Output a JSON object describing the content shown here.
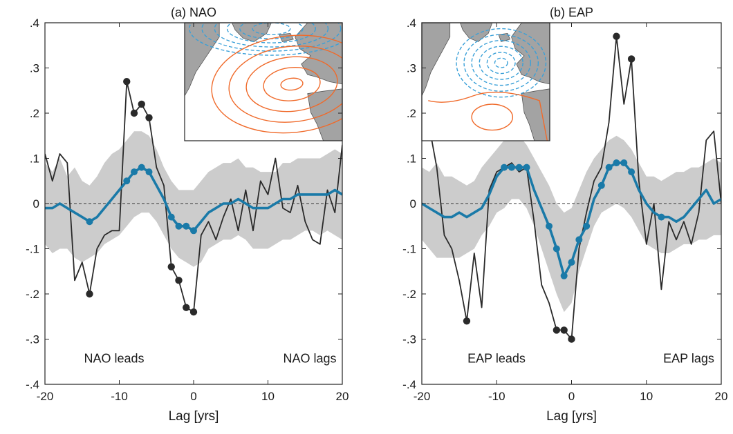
{
  "chart_data": [
    {
      "type": "line",
      "title": "(a) NAO",
      "xlabel": "Lag [yrs]",
      "ylabel": "",
      "xlim": [
        -20,
        20
      ],
      "ylim": [
        -0.4,
        0.4
      ],
      "xticks": [
        -20,
        -10,
        0,
        10,
        20
      ],
      "yticks": [
        -0.4,
        -0.3,
        -0.2,
        -0.1,
        0,
        0.1,
        0.2,
        0.3,
        0.4
      ],
      "zero_line": true,
      "annotations": [
        "NAO leads",
        "NAO lags"
      ],
      "inset_map": true,
      "series": [
        {
          "style": "black-thin",
          "x": [
            -20,
            -19,
            -18,
            -17,
            -16,
            -15,
            -14,
            -13,
            -12,
            -11,
            -10,
            -9,
            -8,
            -7,
            -6,
            -5,
            -4,
            -3,
            -2,
            -1,
            0,
            1,
            2,
            3,
            4,
            5,
            6,
            7,
            8,
            9,
            10,
            11,
            12,
            13,
            14,
            15,
            16,
            17,
            18,
            19,
            20
          ],
          "y": [
            0.11,
            0.05,
            0.11,
            0.09,
            -0.17,
            -0.13,
            -0.2,
            -0.1,
            -0.07,
            -0.06,
            -0.06,
            0.27,
            0.2,
            0.22,
            0.19,
            0.08,
            0.04,
            -0.14,
            -0.17,
            -0.23,
            -0.24,
            -0.07,
            -0.04,
            -0.08,
            -0.03,
            0.01,
            -0.06,
            0.03,
            -0.06,
            0.05,
            0.02,
            0.1,
            -0.01,
            -0.02,
            0.04,
            -0.04,
            -0.08,
            -0.09,
            0.03,
            -0.02,
            0.13
          ],
          "markers_x": [
            -14,
            -9,
            -8,
            -7,
            -6,
            -3,
            -2,
            -1,
            0
          ],
          "markers_y": [
            -0.2,
            0.27,
            0.2,
            0.22,
            0.19,
            -0.14,
            -0.17,
            -0.23,
            -0.24
          ]
        },
        {
          "style": "blue-thick",
          "x": [
            -20,
            -19,
            -18,
            -17,
            -16,
            -15,
            -14,
            -13,
            -12,
            -11,
            -10,
            -9,
            -8,
            -7,
            -6,
            -5,
            -4,
            -3,
            -2,
            -1,
            0,
            1,
            2,
            3,
            4,
            5,
            6,
            7,
            8,
            9,
            10,
            11,
            12,
            13,
            14,
            15,
            16,
            17,
            18,
            19,
            20
          ],
          "y": [
            -0.01,
            -0.01,
            0.0,
            -0.01,
            -0.02,
            -0.03,
            -0.04,
            -0.03,
            -0.01,
            0.01,
            0.03,
            0.05,
            0.07,
            0.08,
            0.07,
            0.04,
            0.01,
            -0.03,
            -0.05,
            -0.05,
            -0.06,
            -0.04,
            -0.02,
            -0.01,
            0.0,
            0.0,
            0.01,
            0.0,
            -0.01,
            -0.01,
            -0.01,
            0.0,
            0.01,
            0.01,
            0.02,
            0.02,
            0.02,
            0.02,
            0.02,
            0.03,
            0.02
          ],
          "markers_x": [
            -14,
            -9,
            -8,
            -7,
            -6,
            -3,
            -2,
            -1,
            0
          ],
          "markers_y": [
            -0.04,
            0.05,
            0.07,
            0.08,
            0.07,
            -0.03,
            -0.05,
            -0.05,
            -0.06
          ]
        }
      ],
      "band": {
        "x": [
          -20,
          -19,
          -18,
          -17,
          -16,
          -15,
          -14,
          -13,
          -12,
          -11,
          -10,
          -9,
          -8,
          -7,
          -6,
          -5,
          -4,
          -3,
          -2,
          -1,
          0,
          1,
          2,
          3,
          4,
          5,
          6,
          7,
          8,
          9,
          10,
          11,
          12,
          13,
          14,
          15,
          16,
          17,
          18,
          19,
          20
        ],
        "upper": [
          0.09,
          0.07,
          0.1,
          0.06,
          0.08,
          0.05,
          0.04,
          0.06,
          0.09,
          0.11,
          0.12,
          0.14,
          0.16,
          0.16,
          0.15,
          0.12,
          0.08,
          0.05,
          0.03,
          0.03,
          0.03,
          0.05,
          0.07,
          0.08,
          0.09,
          0.09,
          0.1,
          0.08,
          0.08,
          0.07,
          0.07,
          0.07,
          0.09,
          0.09,
          0.1,
          0.1,
          0.1,
          0.1,
          0.11,
          0.12,
          0.11
        ],
        "lower": [
          -0.09,
          -0.11,
          -0.1,
          -0.1,
          -0.12,
          -0.13,
          -0.12,
          -0.11,
          -0.09,
          -0.08,
          -0.07,
          -0.05,
          -0.03,
          -0.02,
          -0.02,
          -0.04,
          -0.07,
          -0.1,
          -0.12,
          -0.13,
          -0.14,
          -0.13,
          -0.1,
          -0.09,
          -0.08,
          -0.08,
          -0.07,
          -0.08,
          -0.1,
          -0.1,
          -0.1,
          -0.09,
          -0.08,
          -0.08,
          -0.07,
          -0.06,
          -0.06,
          -0.07,
          -0.06,
          -0.07,
          -0.08
        ]
      }
    },
    {
      "type": "line",
      "title": "(b) EAP",
      "xlabel": "Lag [yrs]",
      "ylabel": "",
      "xlim": [
        -20,
        20
      ],
      "ylim": [
        -0.4,
        0.4
      ],
      "xticks": [
        -20,
        -10,
        0,
        10,
        20
      ],
      "yticks": [
        -0.4,
        -0.3,
        -0.2,
        -0.1,
        0,
        0.1,
        0.2,
        0.3,
        0.4
      ],
      "zero_line": true,
      "annotations": [
        "EAP leads",
        "EAP lags"
      ],
      "inset_map": true,
      "series": [
        {
          "style": "black-thin",
          "x": [
            -20,
            -19,
            -18,
            -17,
            -16,
            -15,
            -14,
            -13,
            -12,
            -11,
            -10,
            -9,
            -8,
            -7,
            -6,
            -5,
            -4,
            -3,
            -2,
            -1,
            0,
            1,
            2,
            3,
            4,
            5,
            6,
            7,
            8,
            9,
            10,
            11,
            12,
            13,
            14,
            15,
            16,
            17,
            18,
            19,
            20
          ],
          "y": [
            0.22,
            0.17,
            0.08,
            -0.07,
            -0.1,
            -0.17,
            -0.26,
            -0.11,
            -0.23,
            0.03,
            0.07,
            0.08,
            0.09,
            0.07,
            0.08,
            -0.04,
            -0.18,
            -0.22,
            -0.28,
            -0.28,
            -0.3,
            -0.1,
            -0.02,
            0.05,
            0.08,
            0.18,
            0.37,
            0.22,
            0.32,
            0.05,
            -0.09,
            0.0,
            -0.19,
            -0.04,
            -0.08,
            -0.04,
            -0.09,
            -0.02,
            0.14,
            0.16,
            0.0
          ],
          "markers_x": [
            -14,
            -2,
            -1,
            0,
            6,
            8
          ],
          "markers_y": [
            -0.26,
            -0.28,
            -0.28,
            -0.3,
            0.37,
            0.32
          ]
        },
        {
          "style": "blue-thick",
          "x": [
            -20,
            -19,
            -18,
            -17,
            -16,
            -15,
            -14,
            -13,
            -12,
            -11,
            -10,
            -9,
            -8,
            -7,
            -6,
            -5,
            -4,
            -3,
            -2,
            -1,
            0,
            1,
            2,
            3,
            4,
            5,
            6,
            7,
            8,
            9,
            10,
            11,
            12,
            13,
            14,
            15,
            16,
            17,
            18,
            19,
            20
          ],
          "y": [
            0.0,
            -0.01,
            -0.02,
            -0.03,
            -0.03,
            -0.02,
            -0.03,
            -0.02,
            -0.01,
            0.02,
            0.06,
            0.08,
            0.08,
            0.08,
            0.08,
            0.03,
            -0.01,
            -0.05,
            -0.1,
            -0.16,
            -0.13,
            -0.08,
            -0.05,
            0.01,
            0.04,
            0.08,
            0.09,
            0.09,
            0.07,
            0.03,
            0.0,
            -0.02,
            -0.03,
            -0.03,
            -0.04,
            -0.03,
            -0.01,
            0.01,
            0.03,
            0.0,
            0.01
          ],
          "markers_x": [
            -9,
            -8,
            -7,
            -6,
            -3,
            -2,
            -1,
            0,
            1,
            2,
            4,
            5,
            6,
            7,
            8,
            12
          ],
          "markers_y": [
            0.08,
            0.08,
            0.08,
            0.08,
            -0.05,
            -0.1,
            -0.16,
            -0.13,
            -0.08,
            -0.05,
            0.04,
            0.08,
            0.09,
            0.09,
            0.07,
            -0.03
          ]
        }
      ],
      "band": {
        "x": [
          -20,
          -19,
          -18,
          -17,
          -16,
          -15,
          -14,
          -13,
          -12,
          -11,
          -10,
          -9,
          -8,
          -7,
          -6,
          -5,
          -4,
          -3,
          -2,
          -1,
          0,
          1,
          2,
          3,
          4,
          5,
          6,
          7,
          8,
          9,
          10,
          11,
          12,
          13,
          14,
          15,
          16,
          17,
          18,
          19,
          20
        ],
        "upper": [
          0.08,
          0.07,
          0.09,
          0.06,
          0.06,
          0.05,
          0.04,
          0.05,
          0.08,
          0.1,
          0.12,
          0.14,
          0.15,
          0.15,
          0.13,
          0.1,
          0.07,
          0.04,
          0.0,
          -0.02,
          -0.01,
          0.03,
          0.07,
          0.1,
          0.12,
          0.14,
          0.15,
          0.14,
          0.12,
          0.09,
          0.06,
          0.06,
          0.05,
          0.06,
          0.07,
          0.07,
          0.08,
          0.08,
          0.09,
          0.1,
          0.09
        ],
        "lower": [
          -0.08,
          -0.1,
          -0.12,
          -0.12,
          -0.12,
          -0.12,
          -0.11,
          -0.1,
          -0.07,
          -0.05,
          -0.02,
          -0.01,
          0.01,
          0.01,
          -0.01,
          -0.05,
          -0.1,
          -0.15,
          -0.2,
          -0.24,
          -0.22,
          -0.15,
          -0.1,
          -0.05,
          -0.02,
          -0.01,
          0.0,
          -0.01,
          -0.03,
          -0.06,
          -0.09,
          -0.1,
          -0.11,
          -0.11,
          -0.1,
          -0.09,
          -0.09,
          -0.08,
          -0.08,
          -0.07,
          -0.07
        ]
      }
    }
  ],
  "colors": {
    "band": "#cccccc",
    "black_line": "#2a2a2a",
    "blue_line": "#1a7aa8",
    "positive_contour": "#f06a2a",
    "negative_contour": "#3aa0d8",
    "land": "#a3a3a3",
    "ocean": "#ffffff"
  }
}
